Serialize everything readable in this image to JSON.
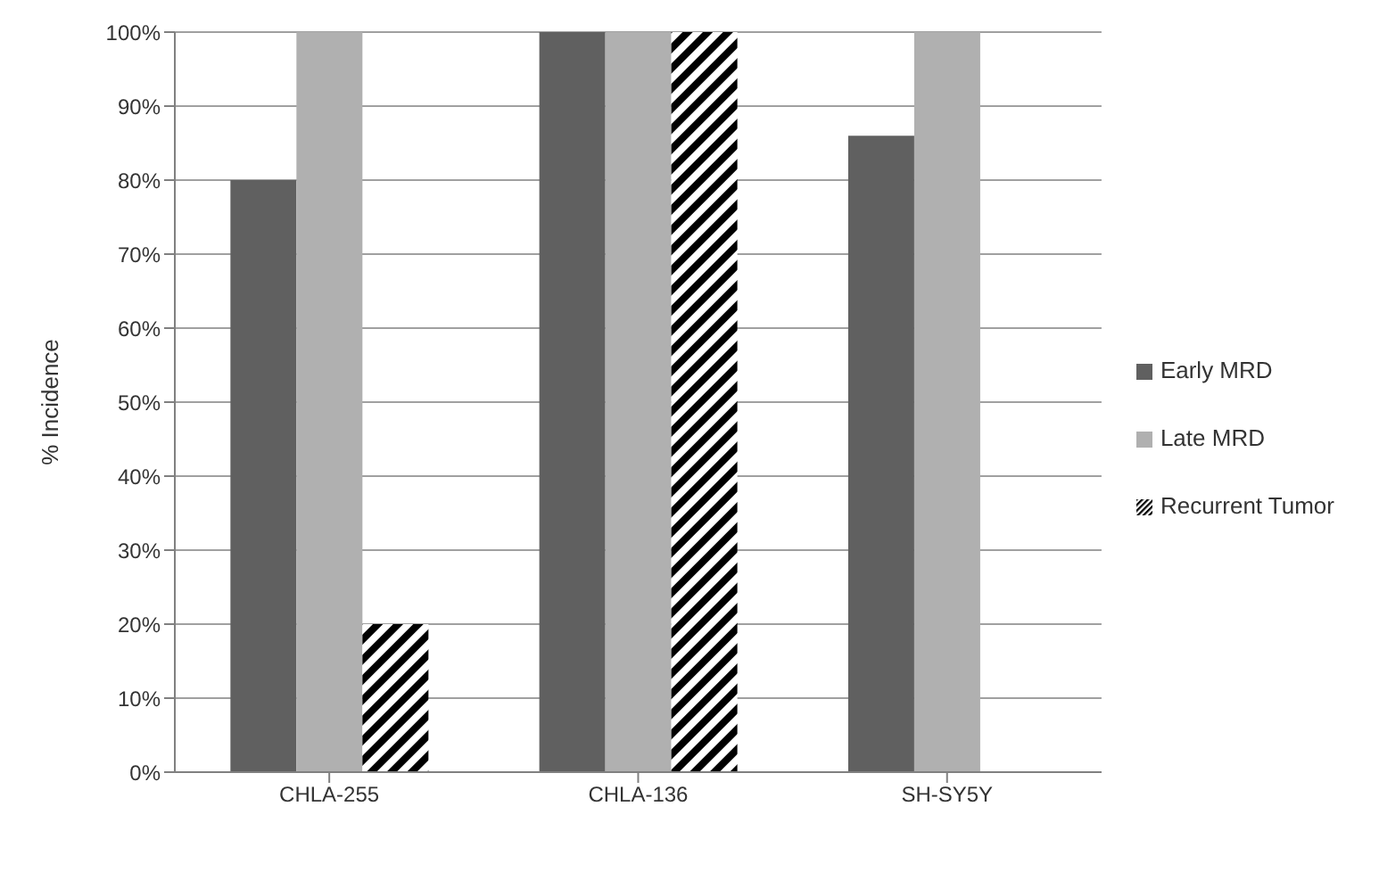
{
  "chart_data": {
    "type": "bar",
    "ylabel": "% Incidence",
    "categories": [
      "CHLA-255",
      "CHLA-136",
      "SH-SY5Y"
    ],
    "series": [
      {
        "name": "Early MRD",
        "color": "#606060",
        "values": [
          80,
          100,
          86
        ]
      },
      {
        "name": "Late MRD",
        "color": "#b0b0b0",
        "values": [
          100,
          100,
          100
        ]
      },
      {
        "name": "Recurrent Tumor",
        "color": "#000000",
        "values": [
          20,
          100,
          0
        ]
      }
    ],
    "ylim": [
      0,
      100
    ],
    "yticks": [
      {
        "value": 0,
        "label": "0%"
      },
      {
        "value": 10,
        "label": "10%"
      },
      {
        "value": 20,
        "label": "20%"
      },
      {
        "value": 30,
        "label": "30%"
      },
      {
        "value": 40,
        "label": "40%"
      },
      {
        "value": 50,
        "label": "50%"
      },
      {
        "value": 60,
        "label": "60%"
      },
      {
        "value": 70,
        "label": "70%"
      },
      {
        "value": 80,
        "label": "80%"
      },
      {
        "value": 90,
        "label": "90%"
      },
      {
        "value": 100,
        "label": "100%"
      }
    ],
    "grid": "y",
    "legend": "right"
  }
}
